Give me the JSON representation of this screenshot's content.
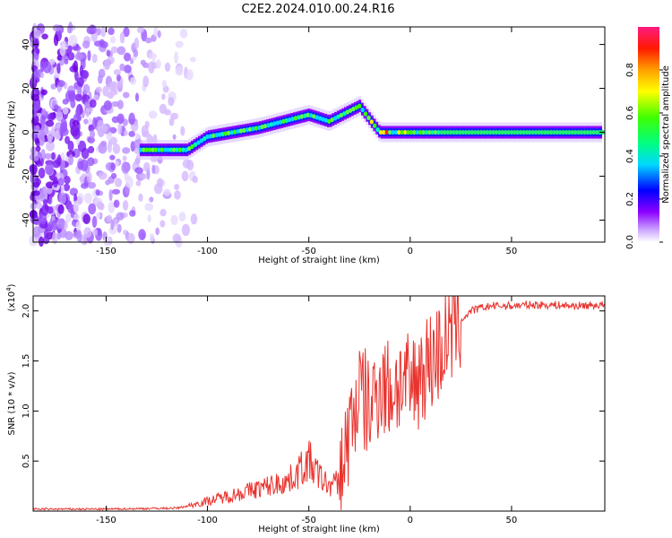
{
  "chart_data": [
    {
      "type": "heatmap",
      "title": "C2E2.2024.010.00.24.R16",
      "xlabel": "Height of straight line (km)",
      "ylabel": "Frequency (Hz)",
      "xlim": [
        -186,
        96
      ],
      "ylim": [
        -50,
        48
      ],
      "xticks": [
        "-150",
        "-100",
        "-50",
        "0",
        "50"
      ],
      "yticks": [
        "-40",
        "-20",
        "0",
        "20",
        "40"
      ],
      "colorbar": {
        "label": "Normalized spectral amplitude",
        "range": [
          0,
          1
        ],
        "ticks": [
          "0.0",
          "0.2",
          "0.4",
          "0.6",
          "0.8"
        ]
      },
      "trace_description": [
        {
          "x": -133,
          "y": -8
        },
        {
          "x": -110,
          "y": -8
        },
        {
          "x": -100,
          "y": -2
        },
        {
          "x": -75,
          "y": 2
        },
        {
          "x": -50,
          "y": 8
        },
        {
          "x": -40,
          "y": 5
        },
        {
          "x": -25,
          "y": 12
        },
        {
          "x": -15,
          "y": 0
        },
        {
          "x": 0,
          "y": 0
        },
        {
          "x": 95,
          "y": 0
        }
      ]
    },
    {
      "type": "line",
      "xlabel": "Height of straight line (km)",
      "ylabel": "SNR (10 * v/v)",
      "y_multiplier": "(x10",
      "y_multiplier_exp": "4",
      "y_multiplier_close": ")",
      "xlim": [
        -186,
        96
      ],
      "ylim": [
        0,
        2.15
      ],
      "xticks": [
        "-150",
        "-100",
        "-50",
        "0",
        "50"
      ],
      "yticks": [
        "0.5",
        "1.0",
        "1.5",
        "2.0"
      ],
      "series": [
        {
          "color": "#e8332e",
          "x": [
            -186,
            -150,
            -115,
            -110,
            -100,
            -90,
            -80,
            -70,
            -60,
            -50,
            -45,
            -40,
            -35,
            -30,
            -25,
            -20,
            -15,
            -10,
            -5,
            0,
            5,
            10,
            15,
            20,
            25,
            30,
            35,
            40,
            50,
            60,
            70,
            80,
            96
          ],
          "y": [
            0.02,
            0.02,
            0.03,
            0.05,
            0.1,
            0.15,
            0.2,
            0.25,
            0.3,
            0.5,
            0.35,
            0.25,
            0.3,
            0.8,
            1.2,
            1.0,
            1.3,
            1.2,
            1.3,
            1.2,
            1.4,
            1.5,
            1.6,
            1.8,
            1.9,
            2.0,
            2.03,
            2.05,
            2.05,
            2.06,
            2.06,
            2.05,
            2.06
          ]
        }
      ]
    }
  ]
}
